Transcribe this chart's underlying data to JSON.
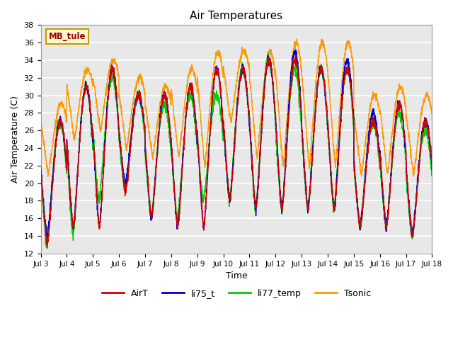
{
  "title": "Air Temperatures",
  "ylabel": "Air Temperature (C)",
  "xlabel": "Time",
  "ylim": [
    12,
    38
  ],
  "yticks": [
    12,
    14,
    16,
    18,
    20,
    22,
    24,
    26,
    28,
    30,
    32,
    34,
    36,
    38
  ],
  "xtick_labels": [
    "Jul 3",
    "Jul 4",
    "Jul 5",
    "Jul 6",
    "Jul 7",
    "Jul 8",
    "Jul 9",
    "Jul 10",
    "Jul 11",
    "Jul 12",
    "Jul 13",
    "Jul 14",
    "Jul 15",
    "Jul 16",
    "Jul 17",
    "Jul 18"
  ],
  "site_label": "MB_tule",
  "colors": {
    "AirT": "#cc0000",
    "li75_t": "#0000cc",
    "li77_temp": "#00cc00",
    "Tsonic": "#ff9900"
  },
  "background_color": "#ffffff",
  "plot_bg_color": "#e8e8e8",
  "title_fontsize": 11,
  "label_fontsize": 9,
  "day_peaks_AirT": [
    27,
    31,
    33,
    30,
    30,
    31,
    33,
    33,
    34,
    34,
    33,
    33,
    27,
    29,
    27,
    26
  ],
  "day_mins_AirT": [
    13,
    15,
    15,
    19,
    16,
    15,
    15,
    18,
    17,
    17,
    17,
    17,
    15,
    15,
    14,
    15
  ],
  "day_peaks_li75": [
    27,
    31,
    33,
    30,
    30,
    31,
    33,
    33,
    34,
    35,
    33,
    34,
    28,
    29,
    27,
    26
  ],
  "day_mins_li75": [
    14,
    15,
    15,
    20,
    16,
    15,
    15,
    18,
    17,
    17,
    17,
    17,
    15,
    15,
    14,
    15
  ],
  "day_peaks_li77": [
    27,
    31,
    32,
    30,
    29,
    30,
    30,
    33,
    34,
    33,
    33,
    33,
    27,
    28,
    26,
    26
  ],
  "day_mins_li77": [
    13,
    14,
    18,
    19,
    16,
    16,
    18,
    18,
    17,
    17,
    17,
    17,
    15,
    15,
    14,
    15
  ],
  "day_peaks_tsonic": [
    29,
    33,
    34,
    32,
    31,
    33,
    35,
    35,
    35,
    36,
    36,
    36,
    30,
    31,
    30,
    29
  ],
  "day_mins_tsonic": [
    21,
    25,
    26,
    24,
    23,
    23,
    22,
    27,
    23,
    22,
    22,
    22,
    21,
    21,
    21,
    22
  ]
}
